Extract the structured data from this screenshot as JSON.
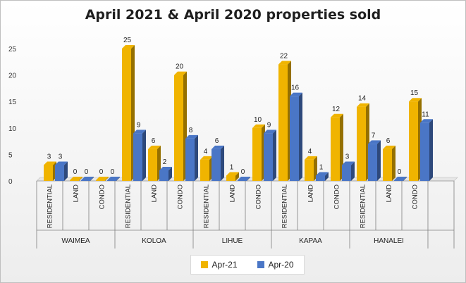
{
  "chart_data": {
    "type": "bar",
    "title": "April 2021 & April 2020  properties sold",
    "groups": [
      {
        "name": "WAIMEA",
        "categories": [
          "RESIDENTIAL",
          "LAND",
          "CONDO"
        ]
      },
      {
        "name": "KOLOA",
        "categories": [
          "RESIDENTIAL",
          "LAND",
          "CONDO"
        ]
      },
      {
        "name": "LIHUE",
        "categories": [
          "RESIDENTIAL",
          "LAND",
          "CONDO"
        ]
      },
      {
        "name": "KAPAA",
        "categories": [
          "RESIDENTIAL",
          "LAND",
          "CONDO"
        ]
      },
      {
        "name": "HANALEI",
        "categories": [
          "RESIDENTIAL",
          "LAND",
          "CONDO"
        ]
      }
    ],
    "series": [
      {
        "name": "Apr-21",
        "color": "#f0b400",
        "values": [
          3,
          0,
          0,
          25,
          6,
          20,
          4,
          1,
          10,
          22,
          4,
          12,
          14,
          6,
          15
        ]
      },
      {
        "name": "Apr-20",
        "color": "#4a76c6",
        "values": [
          3,
          0,
          0,
          9,
          2,
          8,
          6,
          0,
          9,
          16,
          1,
          3,
          7,
          0,
          11
        ]
      }
    ],
    "ylim": [
      0,
      25
    ],
    "yticks": [
      0,
      5,
      10,
      15,
      20,
      25
    ],
    "grid": false,
    "legend": "bottom-center"
  }
}
